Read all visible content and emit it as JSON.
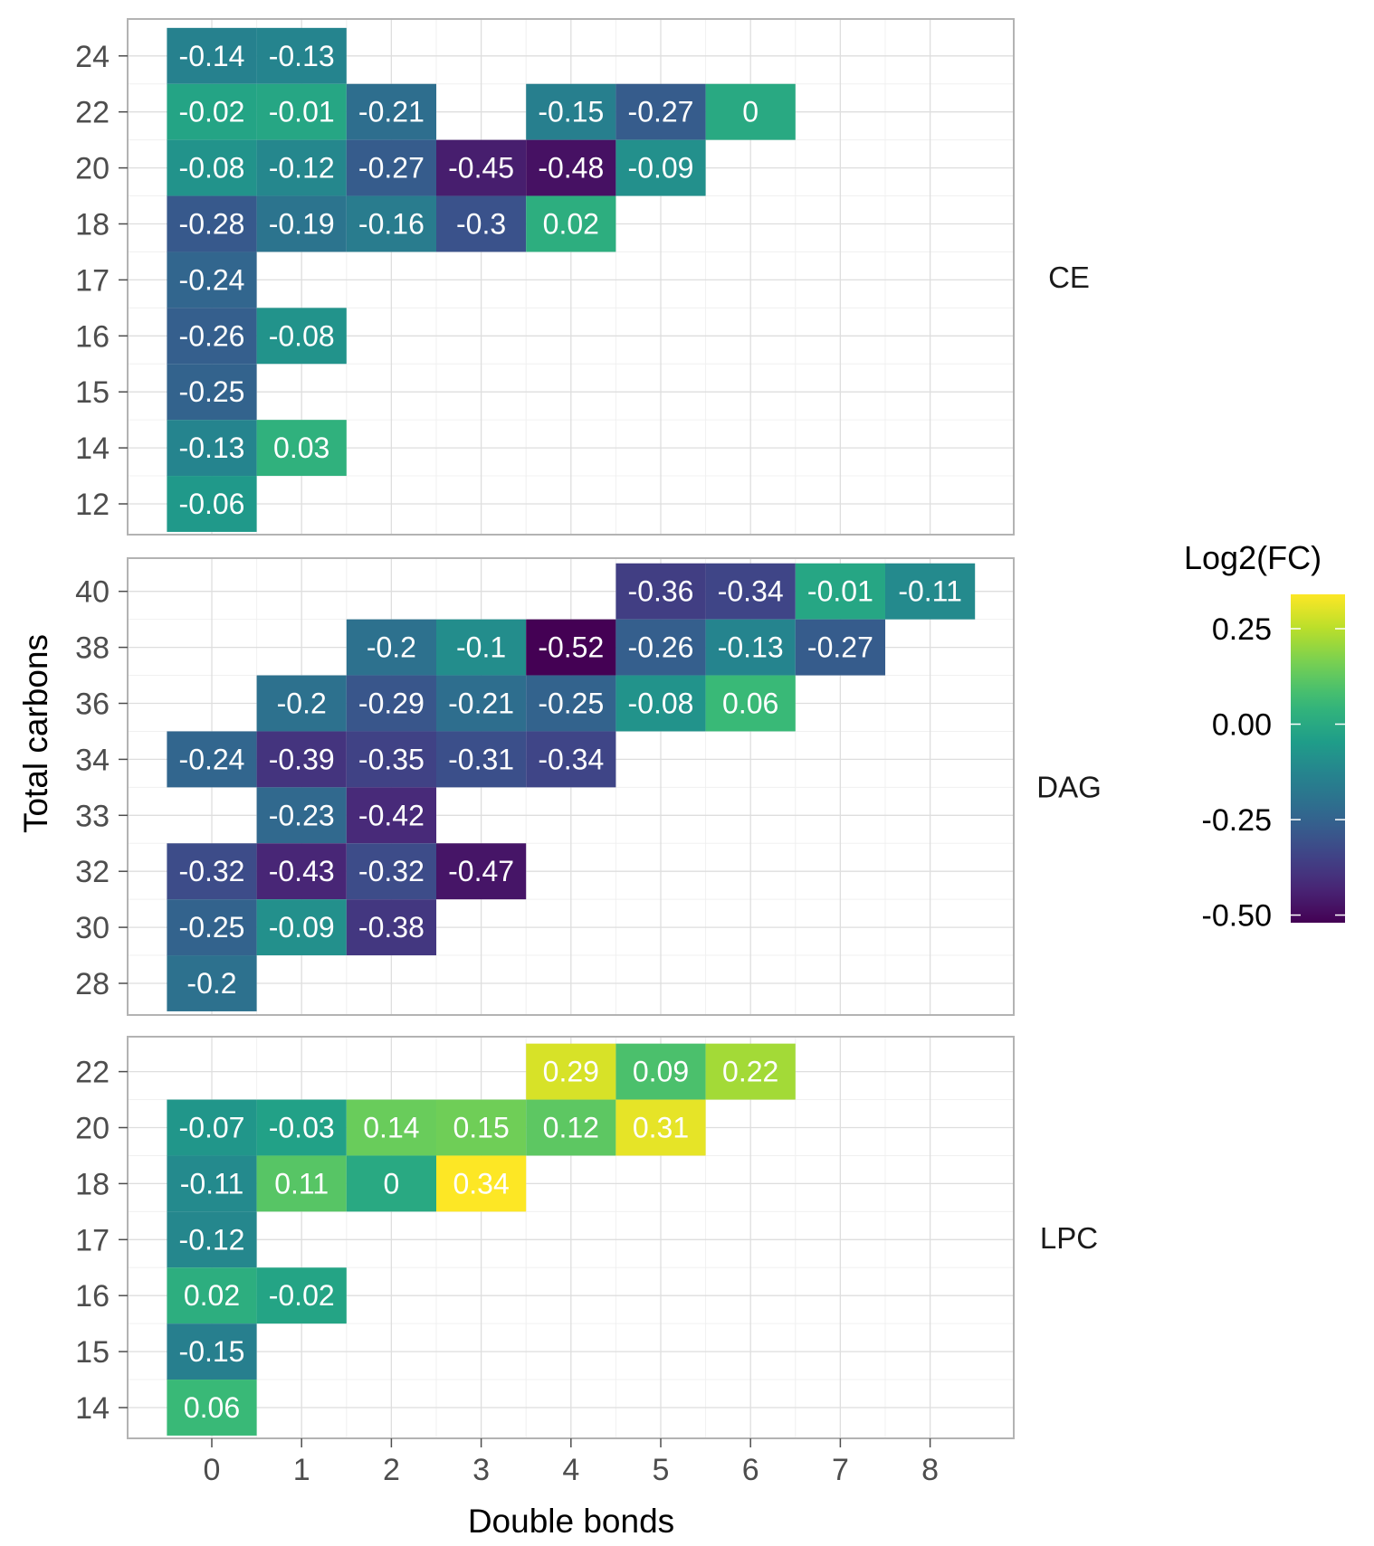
{
  "chart_data": {
    "type": "heatmap",
    "xlabel": "Double bonds",
    "ylabel": "Total carbons",
    "x_ticks": [
      0,
      1,
      2,
      3,
      4,
      5,
      6,
      7,
      8
    ],
    "grid": true,
    "legend": {
      "title": "Log2(FC)",
      "position": "right",
      "ticks": [
        {
          "value": 0.25,
          "label": "0.25"
        },
        {
          "value": 0.0,
          "label": "0.00"
        },
        {
          "value": -0.25,
          "label": "-0.25"
        },
        {
          "value": -0.5,
          "label": "-0.50"
        }
      ],
      "range": [
        -0.52,
        0.34
      ],
      "colormap": "viridis"
    },
    "facets": [
      {
        "name": "CE",
        "y_levels": [
          "12",
          "14",
          "15",
          "16",
          "17",
          "18",
          "20",
          "22",
          "24"
        ],
        "cells": [
          {
            "x": 0,
            "y": "24",
            "value": -0.14,
            "label": "-0.14"
          },
          {
            "x": 1,
            "y": "24",
            "value": -0.13,
            "label": "-0.13"
          },
          {
            "x": 0,
            "y": "22",
            "value": -0.02,
            "label": "-0.02"
          },
          {
            "x": 1,
            "y": "22",
            "value": -0.01,
            "label": "-0.01"
          },
          {
            "x": 2,
            "y": "22",
            "value": -0.21,
            "label": "-0.21"
          },
          {
            "x": 4,
            "y": "22",
            "value": -0.15,
            "label": "-0.15"
          },
          {
            "x": 5,
            "y": "22",
            "value": -0.27,
            "label": "-0.27"
          },
          {
            "x": 6,
            "y": "22",
            "value": 0,
            "label": "0"
          },
          {
            "x": 0,
            "y": "20",
            "value": -0.08,
            "label": "-0.08"
          },
          {
            "x": 1,
            "y": "20",
            "value": -0.12,
            "label": "-0.12"
          },
          {
            "x": 2,
            "y": "20",
            "value": -0.27,
            "label": "-0.27"
          },
          {
            "x": 3,
            "y": "20",
            "value": -0.45,
            "label": "-0.45"
          },
          {
            "x": 4,
            "y": "20",
            "value": -0.48,
            "label": "-0.48"
          },
          {
            "x": 5,
            "y": "20",
            "value": -0.09,
            "label": "-0.09"
          },
          {
            "x": 0,
            "y": "18",
            "value": -0.28,
            "label": "-0.28"
          },
          {
            "x": 1,
            "y": "18",
            "value": -0.19,
            "label": "-0.19"
          },
          {
            "x": 2,
            "y": "18",
            "value": -0.16,
            "label": "-0.16"
          },
          {
            "x": 3,
            "y": "18",
            "value": -0.3,
            "label": "-0.3"
          },
          {
            "x": 4,
            "y": "18",
            "value": 0.02,
            "label": "0.02"
          },
          {
            "x": 0,
            "y": "17",
            "value": -0.24,
            "label": "-0.24"
          },
          {
            "x": 0,
            "y": "16",
            "value": -0.26,
            "label": "-0.26"
          },
          {
            "x": 1,
            "y": "16",
            "value": -0.08,
            "label": "-0.08"
          },
          {
            "x": 0,
            "y": "15",
            "value": -0.25,
            "label": "-0.25"
          },
          {
            "x": 0,
            "y": "14",
            "value": -0.13,
            "label": "-0.13"
          },
          {
            "x": 1,
            "y": "14",
            "value": 0.03,
            "label": "0.03"
          },
          {
            "x": 0,
            "y": "12",
            "value": -0.06,
            "label": "-0.06"
          }
        ]
      },
      {
        "name": "DAG",
        "y_levels": [
          "28",
          "30",
          "32",
          "33",
          "34",
          "36",
          "38",
          "40"
        ],
        "cells": [
          {
            "x": 5,
            "y": "40",
            "value": -0.36,
            "label": "-0.36"
          },
          {
            "x": 6,
            "y": "40",
            "value": -0.34,
            "label": "-0.34"
          },
          {
            "x": 7,
            "y": "40",
            "value": -0.01,
            "label": "-0.01"
          },
          {
            "x": 8,
            "y": "40",
            "value": -0.11,
            "label": "-0.11"
          },
          {
            "x": 2,
            "y": "38",
            "value": -0.2,
            "label": "-0.2"
          },
          {
            "x": 3,
            "y": "38",
            "value": -0.1,
            "label": "-0.1"
          },
          {
            "x": 4,
            "y": "38",
            "value": -0.52,
            "label": "-0.52"
          },
          {
            "x": 5,
            "y": "38",
            "value": -0.26,
            "label": "-0.26"
          },
          {
            "x": 6,
            "y": "38",
            "value": -0.13,
            "label": "-0.13"
          },
          {
            "x": 7,
            "y": "38",
            "value": -0.27,
            "label": "-0.27"
          },
          {
            "x": 1,
            "y": "36",
            "value": -0.2,
            "label": "-0.2"
          },
          {
            "x": 2,
            "y": "36",
            "value": -0.29,
            "label": "-0.29"
          },
          {
            "x": 3,
            "y": "36",
            "value": -0.21,
            "label": "-0.21"
          },
          {
            "x": 4,
            "y": "36",
            "value": -0.25,
            "label": "-0.25"
          },
          {
            "x": 5,
            "y": "36",
            "value": -0.08,
            "label": "-0.08"
          },
          {
            "x": 6,
            "y": "36",
            "value": 0.06,
            "label": "0.06"
          },
          {
            "x": 0,
            "y": "34",
            "value": -0.24,
            "label": "-0.24"
          },
          {
            "x": 1,
            "y": "34",
            "value": -0.39,
            "label": "-0.39"
          },
          {
            "x": 2,
            "y": "34",
            "value": -0.35,
            "label": "-0.35"
          },
          {
            "x": 3,
            "y": "34",
            "value": -0.31,
            "label": "-0.31"
          },
          {
            "x": 4,
            "y": "34",
            "value": -0.34,
            "label": "-0.34"
          },
          {
            "x": 1,
            "y": "33",
            "value": -0.23,
            "label": "-0.23"
          },
          {
            "x": 2,
            "y": "33",
            "value": -0.42,
            "label": "-0.42"
          },
          {
            "x": 0,
            "y": "32",
            "value": -0.32,
            "label": "-0.32"
          },
          {
            "x": 1,
            "y": "32",
            "value": -0.43,
            "label": "-0.43"
          },
          {
            "x": 2,
            "y": "32",
            "value": -0.32,
            "label": "-0.32"
          },
          {
            "x": 3,
            "y": "32",
            "value": -0.47,
            "label": "-0.47"
          },
          {
            "x": 0,
            "y": "30",
            "value": -0.25,
            "label": "-0.25"
          },
          {
            "x": 1,
            "y": "30",
            "value": -0.09,
            "label": "-0.09"
          },
          {
            "x": 2,
            "y": "30",
            "value": -0.38,
            "label": "-0.38"
          },
          {
            "x": 0,
            "y": "28",
            "value": -0.2,
            "label": "-0.2"
          }
        ]
      },
      {
        "name": "LPC",
        "y_levels": [
          "14",
          "15",
          "16",
          "17",
          "18",
          "20",
          "22"
        ],
        "cells": [
          {
            "x": 4,
            "y": "22",
            "value": 0.29,
            "label": "0.29"
          },
          {
            "x": 5,
            "y": "22",
            "value": 0.09,
            "label": "0.09"
          },
          {
            "x": 6,
            "y": "22",
            "value": 0.22,
            "label": "0.22"
          },
          {
            "x": 0,
            "y": "20",
            "value": -0.07,
            "label": "-0.07"
          },
          {
            "x": 1,
            "y": "20",
            "value": -0.03,
            "label": "-0.03"
          },
          {
            "x": 2,
            "y": "20",
            "value": 0.14,
            "label": "0.14"
          },
          {
            "x": 3,
            "y": "20",
            "value": 0.15,
            "label": "0.15"
          },
          {
            "x": 4,
            "y": "20",
            "value": 0.12,
            "label": "0.12"
          },
          {
            "x": 5,
            "y": "20",
            "value": 0.31,
            "label": "0.31"
          },
          {
            "x": 0,
            "y": "18",
            "value": -0.11,
            "label": "-0.11"
          },
          {
            "x": 1,
            "y": "18",
            "value": 0.11,
            "label": "0.11"
          },
          {
            "x": 2,
            "y": "18",
            "value": 0,
            "label": "0"
          },
          {
            "x": 3,
            "y": "18",
            "value": 0.34,
            "label": "0.34"
          },
          {
            "x": 0,
            "y": "17",
            "value": -0.12,
            "label": "-0.12"
          },
          {
            "x": 0,
            "y": "16",
            "value": 0.02,
            "label": "0.02"
          },
          {
            "x": 1,
            "y": "16",
            "value": -0.02,
            "label": "-0.02"
          },
          {
            "x": 0,
            "y": "15",
            "value": -0.15,
            "label": "-0.15"
          },
          {
            "x": 0,
            "y": "14",
            "value": 0.06,
            "label": "0.06"
          }
        ]
      }
    ]
  }
}
